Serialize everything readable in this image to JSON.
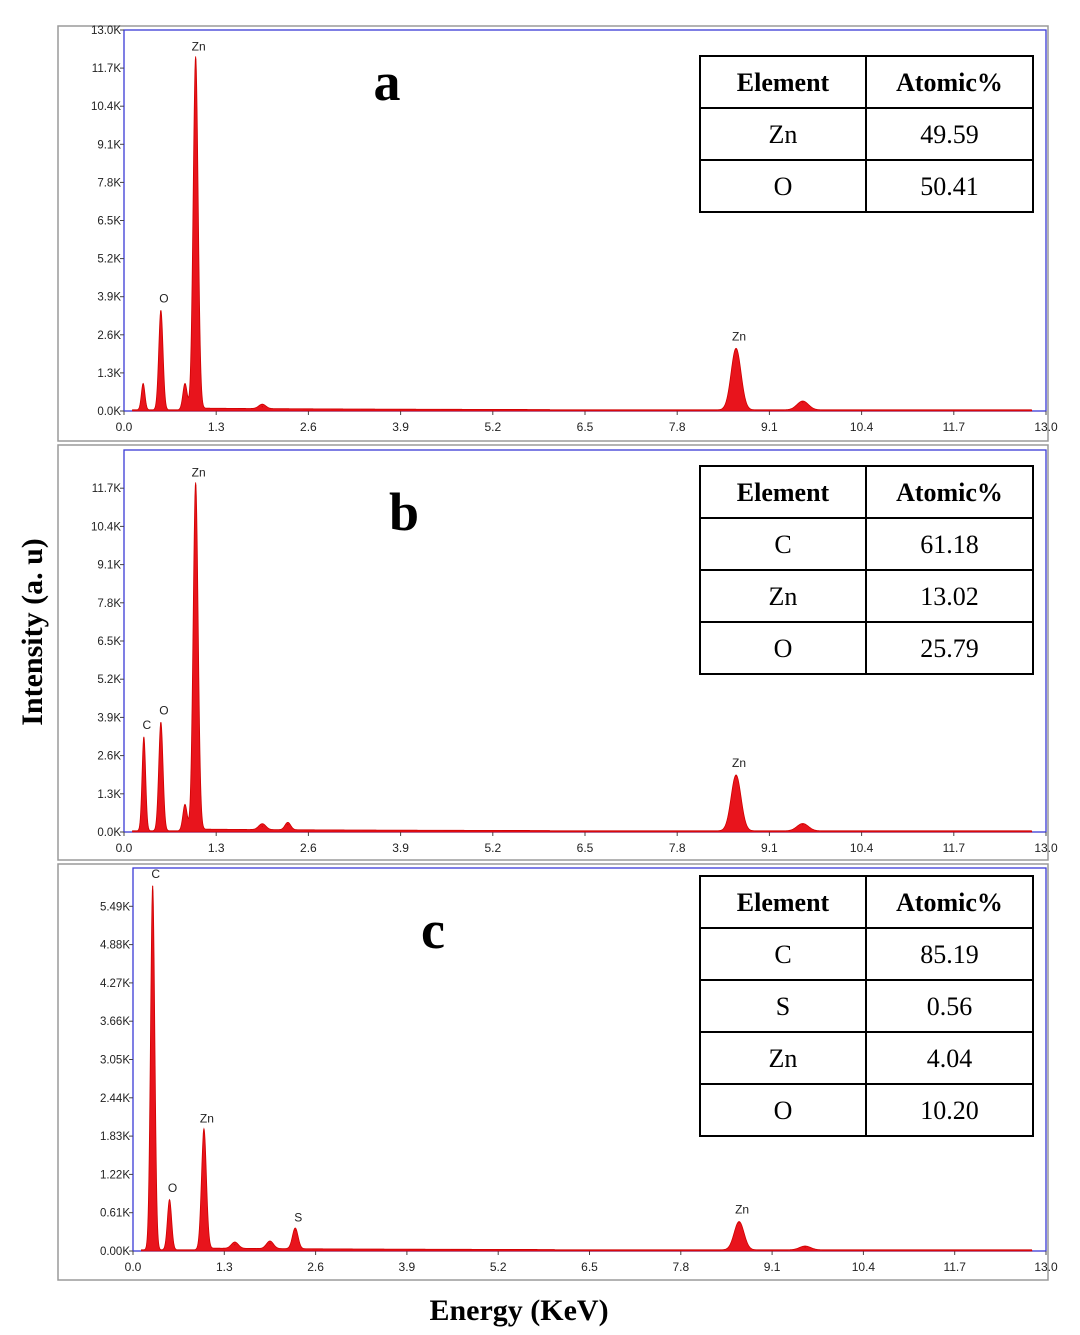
{
  "figure": {
    "xlabel": "Energy (KeV)",
    "ylabel": "Intensity (a. u)"
  },
  "chart_data": [
    {
      "type": "line",
      "panel_label": "a",
      "xlim": [
        0,
        13.0
      ],
      "xticks": [
        "0.0",
        "1.3",
        "2.6",
        "3.9",
        "5.2",
        "6.5",
        "7.8",
        "9.1",
        "10.4",
        "11.7",
        "13.0"
      ],
      "ylim": [
        0,
        13.0
      ],
      "yticks": [
        "0.0K",
        "1.3K",
        "2.6K",
        "3.9K",
        "5.2K",
        "6.5K",
        "7.8K",
        "9.1K",
        "10.4K",
        "11.7K",
        "13.0K"
      ],
      "peaks": [
        {
          "label": "",
          "x": 0.27,
          "y": 0.9,
          "w": 0.025
        },
        {
          "label": "O",
          "x": 0.52,
          "y": 3.4,
          "w": 0.03
        },
        {
          "label": "",
          "x": 0.86,
          "y": 0.9,
          "w": 0.03
        },
        {
          "label": "Zn",
          "x": 1.01,
          "y": 12.0,
          "w": 0.035
        },
        {
          "label": "",
          "x": 1.95,
          "y": 0.15,
          "w": 0.05
        },
        {
          "label": "Zn",
          "x": 8.63,
          "y": 2.1,
          "w": 0.07
        },
        {
          "label": "",
          "x": 9.57,
          "y": 0.3,
          "w": 0.08
        }
      ],
      "table": {
        "headers": [
          "Element",
          "Atomic%"
        ],
        "rows": [
          [
            "Zn",
            "49.59"
          ],
          [
            "O",
            "50.41"
          ]
        ]
      }
    },
    {
      "type": "line",
      "panel_label": "b",
      "xlim": [
        0,
        13.0
      ],
      "xticks": [
        "0.0",
        "1.3",
        "2.6",
        "3.9",
        "5.2",
        "6.5",
        "7.8",
        "9.1",
        "10.4",
        "11.7",
        "13.0"
      ],
      "ylim": [
        0,
        13.0
      ],
      "yticks": [
        "0.0K",
        "1.3K",
        "2.6K",
        "3.9K",
        "5.2K",
        "6.5K",
        "7.8K",
        "9.1K",
        "10.4K",
        "11.7K"
      ],
      "peaks": [
        {
          "label": "C",
          "x": 0.28,
          "y": 3.2,
          "w": 0.025
        },
        {
          "label": "O",
          "x": 0.52,
          "y": 3.7,
          "w": 0.03
        },
        {
          "label": "",
          "x": 0.86,
          "y": 0.9,
          "w": 0.03
        },
        {
          "label": "Zn",
          "x": 1.01,
          "y": 11.8,
          "w": 0.035
        },
        {
          "label": "",
          "x": 1.95,
          "y": 0.2,
          "w": 0.05
        },
        {
          "label": "",
          "x": 2.31,
          "y": 0.25,
          "w": 0.04
        },
        {
          "label": "Zn",
          "x": 8.63,
          "y": 1.9,
          "w": 0.07
        },
        {
          "label": "",
          "x": 9.57,
          "y": 0.25,
          "w": 0.08
        }
      ],
      "table": {
        "headers": [
          "Element",
          "Atomic%"
        ],
        "rows": [
          [
            "C",
            "61.18"
          ],
          [
            "Zn",
            "13.02"
          ],
          [
            "O",
            "25.79"
          ]
        ]
      }
    },
    {
      "type": "line",
      "panel_label": "c",
      "xlim": [
        0,
        13.0
      ],
      "xticks": [
        "0.0",
        "1.3",
        "2.6",
        "3.9",
        "5.2",
        "6.5",
        "7.8",
        "9.1",
        "10.4",
        "11.7",
        "13.0"
      ],
      "ylim": [
        0,
        6.1
      ],
      "yticks": [
        "0.00K",
        "0.61K",
        "1.22K",
        "1.83K",
        "2.44K",
        "3.05K",
        "3.66K",
        "4.27K",
        "4.88K",
        "5.49K"
      ],
      "peaks": [
        {
          "label": "C",
          "x": 0.28,
          "y": 5.8,
          "w": 0.03
        },
        {
          "label": "O",
          "x": 0.52,
          "y": 0.8,
          "w": 0.03
        },
        {
          "label": "Zn",
          "x": 1.01,
          "y": 1.9,
          "w": 0.035
        },
        {
          "label": "",
          "x": 1.45,
          "y": 0.1,
          "w": 0.05
        },
        {
          "label": "",
          "x": 1.95,
          "y": 0.12,
          "w": 0.05
        },
        {
          "label": "S",
          "x": 2.31,
          "y": 0.33,
          "w": 0.04
        },
        {
          "label": "Zn",
          "x": 8.63,
          "y": 0.45,
          "w": 0.07
        },
        {
          "label": "",
          "x": 9.57,
          "y": 0.06,
          "w": 0.08
        }
      ],
      "table": {
        "headers": [
          "Element",
          "Atomic%"
        ],
        "rows": [
          [
            "C",
            "85.19"
          ],
          [
            "S",
            "0.56"
          ],
          [
            "Zn",
            "4.04"
          ],
          [
            "O",
            "10.20"
          ]
        ]
      }
    }
  ]
}
